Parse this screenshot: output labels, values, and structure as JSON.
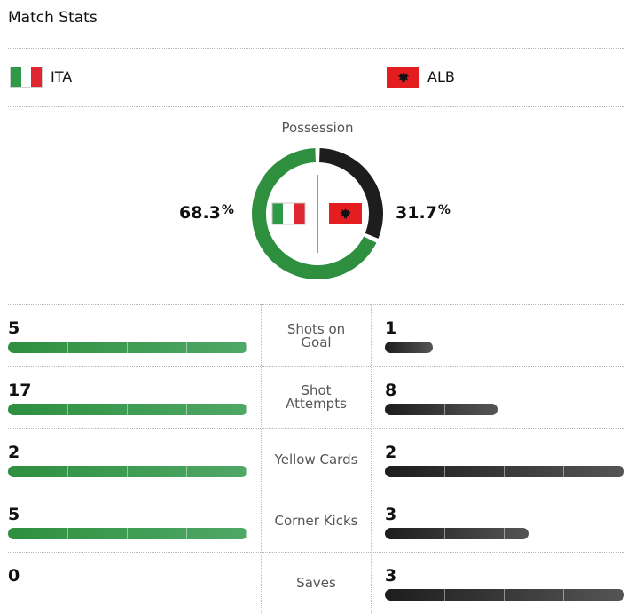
{
  "header": {
    "title": "Match Stats"
  },
  "teams": {
    "home": {
      "abbr": "ITA",
      "color": "#2e8f3f"
    },
    "away": {
      "abbr": "ALB",
      "color": "#1d1d1d"
    }
  },
  "possession": {
    "label": "Possession",
    "home_value": "68.3",
    "away_value": "31.7",
    "unit": "%",
    "home_fraction": 0.683,
    "away_fraction": 0.317
  },
  "stats": [
    {
      "label": "Shots on Goal",
      "label_lines": [
        "Shots on",
        "Goal"
      ],
      "home": "5",
      "away": "1",
      "home_fill": 1.0,
      "away_fill": 0.2
    },
    {
      "label": "Shot Attempts",
      "label_lines": [
        "Shot",
        "Attempts"
      ],
      "home": "17",
      "away": "8",
      "home_fill": 1.0,
      "away_fill": 0.47
    },
    {
      "label": "Yellow Cards",
      "label_lines": [
        "Yellow Cards"
      ],
      "home": "2",
      "away": "2",
      "home_fill": 1.0,
      "away_fill": 1.0
    },
    {
      "label": "Corner Kicks",
      "label_lines": [
        "Corner Kicks"
      ],
      "home": "5",
      "away": "3",
      "home_fill": 1.0,
      "away_fill": 0.6
    },
    {
      "label": "Saves",
      "label_lines": [
        "Saves"
      ],
      "home": "0",
      "away": "3",
      "home_fill": 0.0,
      "away_fill": 1.0
    }
  ]
}
